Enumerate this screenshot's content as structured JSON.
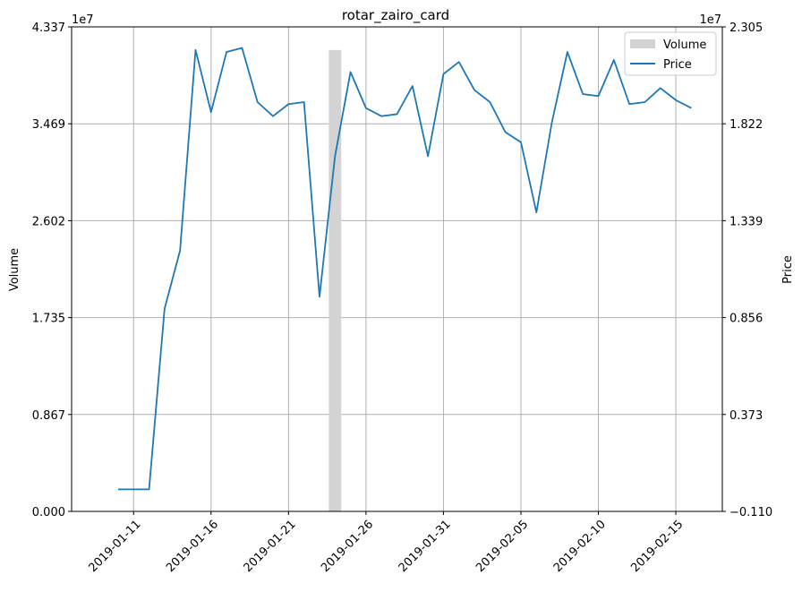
{
  "chart_data": {
    "type": "line",
    "title": "rotar_zairo_card",
    "left_axis": {
      "label": "Volume",
      "scale_label": "1e7",
      "range": [
        0,
        4.337
      ],
      "ticks": [
        "0.000",
        "0.867",
        "1.735",
        "2.602",
        "3.469",
        "4.337"
      ]
    },
    "right_axis": {
      "label": "Price",
      "scale_label": "1e7",
      "range": [
        -0.11,
        2.305
      ],
      "ticks": [
        "−0.110",
        "0.373",
        "0.856",
        "1.339",
        "1.822",
        "2.305"
      ]
    },
    "x_axis": {
      "range": [
        "2019-01-07",
        "2019-02-18"
      ],
      "ticks": [
        "2019-01-11",
        "2019-01-16",
        "2019-01-21",
        "2019-01-26",
        "2019-01-31",
        "2019-02-05",
        "2019-02-10",
        "2019-02-15"
      ]
    },
    "grid": true,
    "legend": {
      "position": "top-right",
      "entries": [
        "Volume",
        "Price"
      ]
    },
    "series": [
      {
        "name": "Volume",
        "type": "bar",
        "axis": "left",
        "color": "#d3d3d3",
        "x": [
          "2019-01-24"
        ],
        "values": [
          4.13
        ]
      },
      {
        "name": "Price",
        "type": "line",
        "axis": "right",
        "color": "#1f77b4",
        "x": [
          "2019-01-10",
          "2019-01-11",
          "2019-01-12",
          "2019-01-13",
          "2019-01-14",
          "2019-01-15",
          "2019-01-16",
          "2019-01-17",
          "2019-01-18",
          "2019-01-19",
          "2019-01-20",
          "2019-01-21",
          "2019-01-22",
          "2019-01-23",
          "2019-01-24",
          "2019-01-25",
          "2019-01-26",
          "2019-01-27",
          "2019-01-28",
          "2019-01-29",
          "2019-01-30",
          "2019-01-31",
          "2019-02-01",
          "2019-02-02",
          "2019-02-03",
          "2019-02-04",
          "2019-02-05",
          "2019-02-06",
          "2019-02-07",
          "2019-02-08",
          "2019-02-09",
          "2019-02-10",
          "2019-02-11",
          "2019-02-12",
          "2019-02-13",
          "2019-02-14",
          "2019-02-15",
          "2019-02-16"
        ],
        "values": [
          0.0,
          0.0,
          0.0,
          0.9,
          1.19,
          2.19,
          1.88,
          2.18,
          2.2,
          1.93,
          1.86,
          1.92,
          1.93,
          0.96,
          1.66,
          2.08,
          1.9,
          1.86,
          1.87,
          2.01,
          1.66,
          2.07,
          2.13,
          1.99,
          1.93,
          1.78,
          1.73,
          1.38,
          1.83,
          2.18,
          1.97,
          1.96,
          2.14,
          1.92,
          1.93,
          2.0,
          1.94,
          1.9
        ]
      }
    ]
  }
}
